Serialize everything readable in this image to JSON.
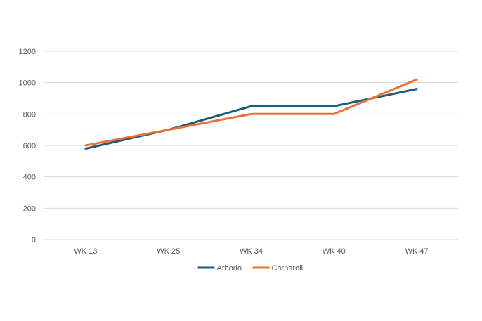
{
  "chart_data": {
    "type": "line",
    "categories": [
      "WK 13",
      "WK 25",
      "WK 34",
      "WK 40",
      "WK 47"
    ],
    "series": [
      {
        "name": "Arborio",
        "color": "#1f5c7a",
        "values": [
          580,
          700,
          850,
          850,
          960
        ]
      },
      {
        "name": "Carnaroli",
        "color": "#ed7031",
        "values": [
          600,
          700,
          800,
          800,
          1020
        ]
      }
    ],
    "title": "",
    "xlabel": "",
    "ylabel": "",
    "ylim": [
      0,
      1200
    ],
    "yticks": [
      "0",
      "200",
      "400",
      "600",
      "800",
      "1000",
      "1200"
    ],
    "grid": true,
    "gridline_color": "#d9d9d9",
    "legend_position": "bottom"
  }
}
